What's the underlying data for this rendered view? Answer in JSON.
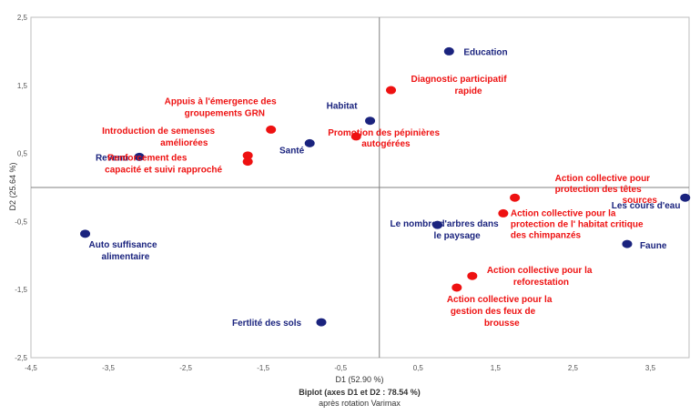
{
  "chart_data": {
    "type": "scatter",
    "xlabel": "D1 (52.90 %)",
    "ylabel": "D2 (25.64 %)",
    "caption_line1": "Biplot (axes D1 et D2 : 78.54 %)",
    "caption_line2": "après rotation Varimax",
    "xlim": [
      -4.5,
      4
    ],
    "ylim": [
      -2.5,
      2.5
    ],
    "xticks": [
      "-4,5",
      "-3,5",
      "-2,5",
      "-1,5",
      "-0,5",
      "0,5",
      "1,5",
      "2,5",
      "3,5"
    ],
    "xtick_values": [
      -4.5,
      -3.5,
      -2.5,
      -1.5,
      -0.5,
      0.5,
      1.5,
      2.5,
      3.5
    ],
    "yticks": [
      "2,5",
      "1,5",
      "0,5",
      "-0,5",
      "-1,5",
      "-2,5"
    ],
    "ytick_values": [
      2.5,
      1.5,
      0.5,
      -0.5,
      -1.5,
      -2.5
    ],
    "colors": {
      "variables": "#1a237e",
      "observations": "#ee1111"
    },
    "series": [
      {
        "group": "variables",
        "points": [
          {
            "label": "Education",
            "x": 0.9,
            "y": 2.0
          },
          {
            "label": "Habitat",
            "x": -0.12,
            "y": 0.98
          },
          {
            "label": "Santé",
            "x": -0.9,
            "y": 0.65
          },
          {
            "label": "Revenu",
            "x": -3.1,
            "y": 0.45
          },
          {
            "label": "Auto suffisance alimentaire",
            "x": -3.8,
            "y": -0.68
          },
          {
            "label": "Le nombre d'arbres dans le paysage",
            "x": 0.75,
            "y": -0.55
          },
          {
            "label": "Les cours d'eau",
            "x": 3.95,
            "y": -0.15
          },
          {
            "label": "Faune",
            "x": 3.2,
            "y": -0.83
          },
          {
            "label": "Fertlité des sols",
            "x": -0.75,
            "y": -1.98
          }
        ]
      },
      {
        "group": "observations",
        "points": [
          {
            "label": "Diagnostic participatif rapide",
            "x": 0.15,
            "y": 1.43
          },
          {
            "label": "Appuis à l'émergence des groupements GRN",
            "x": -1.4,
            "y": 0.85
          },
          {
            "label": "Promotion des pépinières autogérées",
            "x": -0.3,
            "y": 0.75
          },
          {
            "label": "Introduction de semenses améliorées",
            "x": -1.7,
            "y": 0.47
          },
          {
            "label": "Renforcement des capacité et suivi rapproché",
            "x": -1.7,
            "y": 0.38
          },
          {
            "label": "Action collective pour protection des têtes sources",
            "x": 1.75,
            "y": -0.15
          },
          {
            "label": "Action collective pour la protection de l' habitat critique des chimpanzés",
            "x": 1.6,
            "y": -0.38
          },
          {
            "label": "Action collective pour la reforestation",
            "x": 1.2,
            "y": -1.3
          },
          {
            "label": "Action collective pour la gestion des feux de brousse",
            "x": 1.0,
            "y": -1.47
          }
        ]
      }
    ]
  }
}
